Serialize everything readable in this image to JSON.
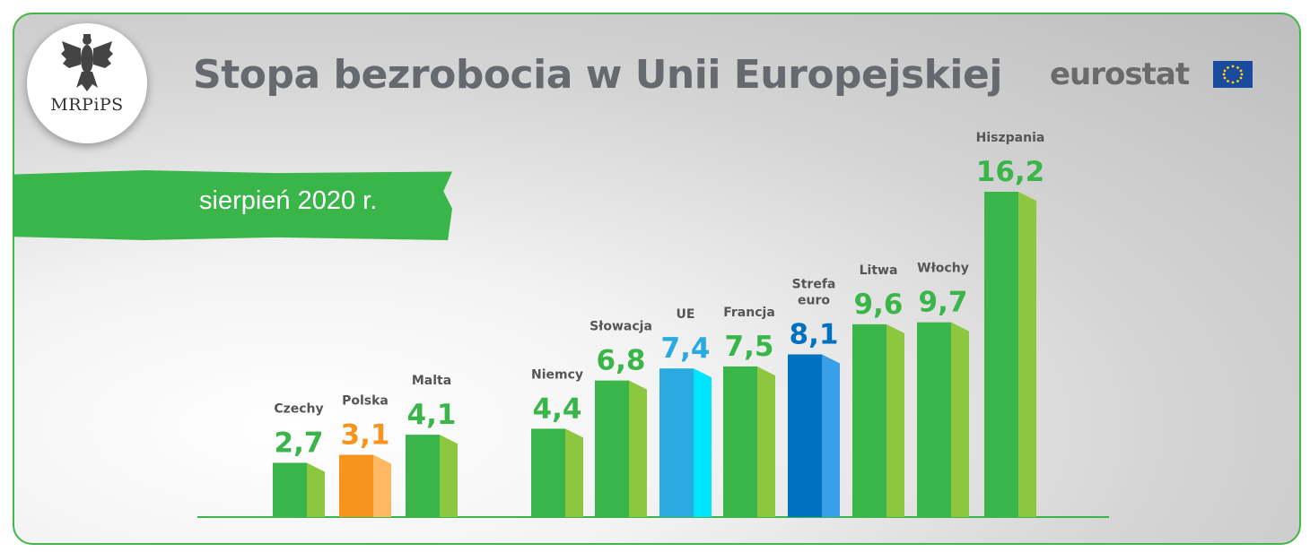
{
  "logo": {
    "label": "MRPiPS"
  },
  "header": {
    "title": "Stopa bezrobocia w Unii Europejskiej",
    "source": "eurostat"
  },
  "banner": {
    "text": "sierpień 2020 r."
  },
  "colors": {
    "green": "#3ab54a",
    "orange": "#f7941d",
    "light_blue": "#29abe2",
    "dark_blue": "#0070c0",
    "frame": "#43b649"
  },
  "chart_data": {
    "type": "bar",
    "title": "Stopa bezrobocia w Unii Europejskiej",
    "subtitle": "sierpień 2020 r.",
    "unit": "%",
    "categories": [
      "Czechy",
      "Polska",
      "Malta",
      "Niemcy",
      "Słowacja",
      "UE",
      "Francja",
      "Strefa euro",
      "Litwa",
      "Włochy",
      "Hiszpania"
    ],
    "values": [
      2.7,
      3.1,
      4.1,
      4.4,
      6.8,
      7.4,
      7.5,
      8.1,
      9.6,
      9.7,
      16.2
    ],
    "value_labels": [
      "2,7",
      "3,1",
      "4,1",
      "4,4",
      "6,8",
      "7,4",
      "7,5",
      "8,1",
      "9,6",
      "9,7",
      "16,2"
    ],
    "bar_colors": [
      "green",
      "orange",
      "green",
      "green",
      "green",
      "light_blue",
      "green",
      "dark_blue",
      "green",
      "green",
      "green"
    ],
    "ylim": [
      0,
      16.2
    ]
  }
}
